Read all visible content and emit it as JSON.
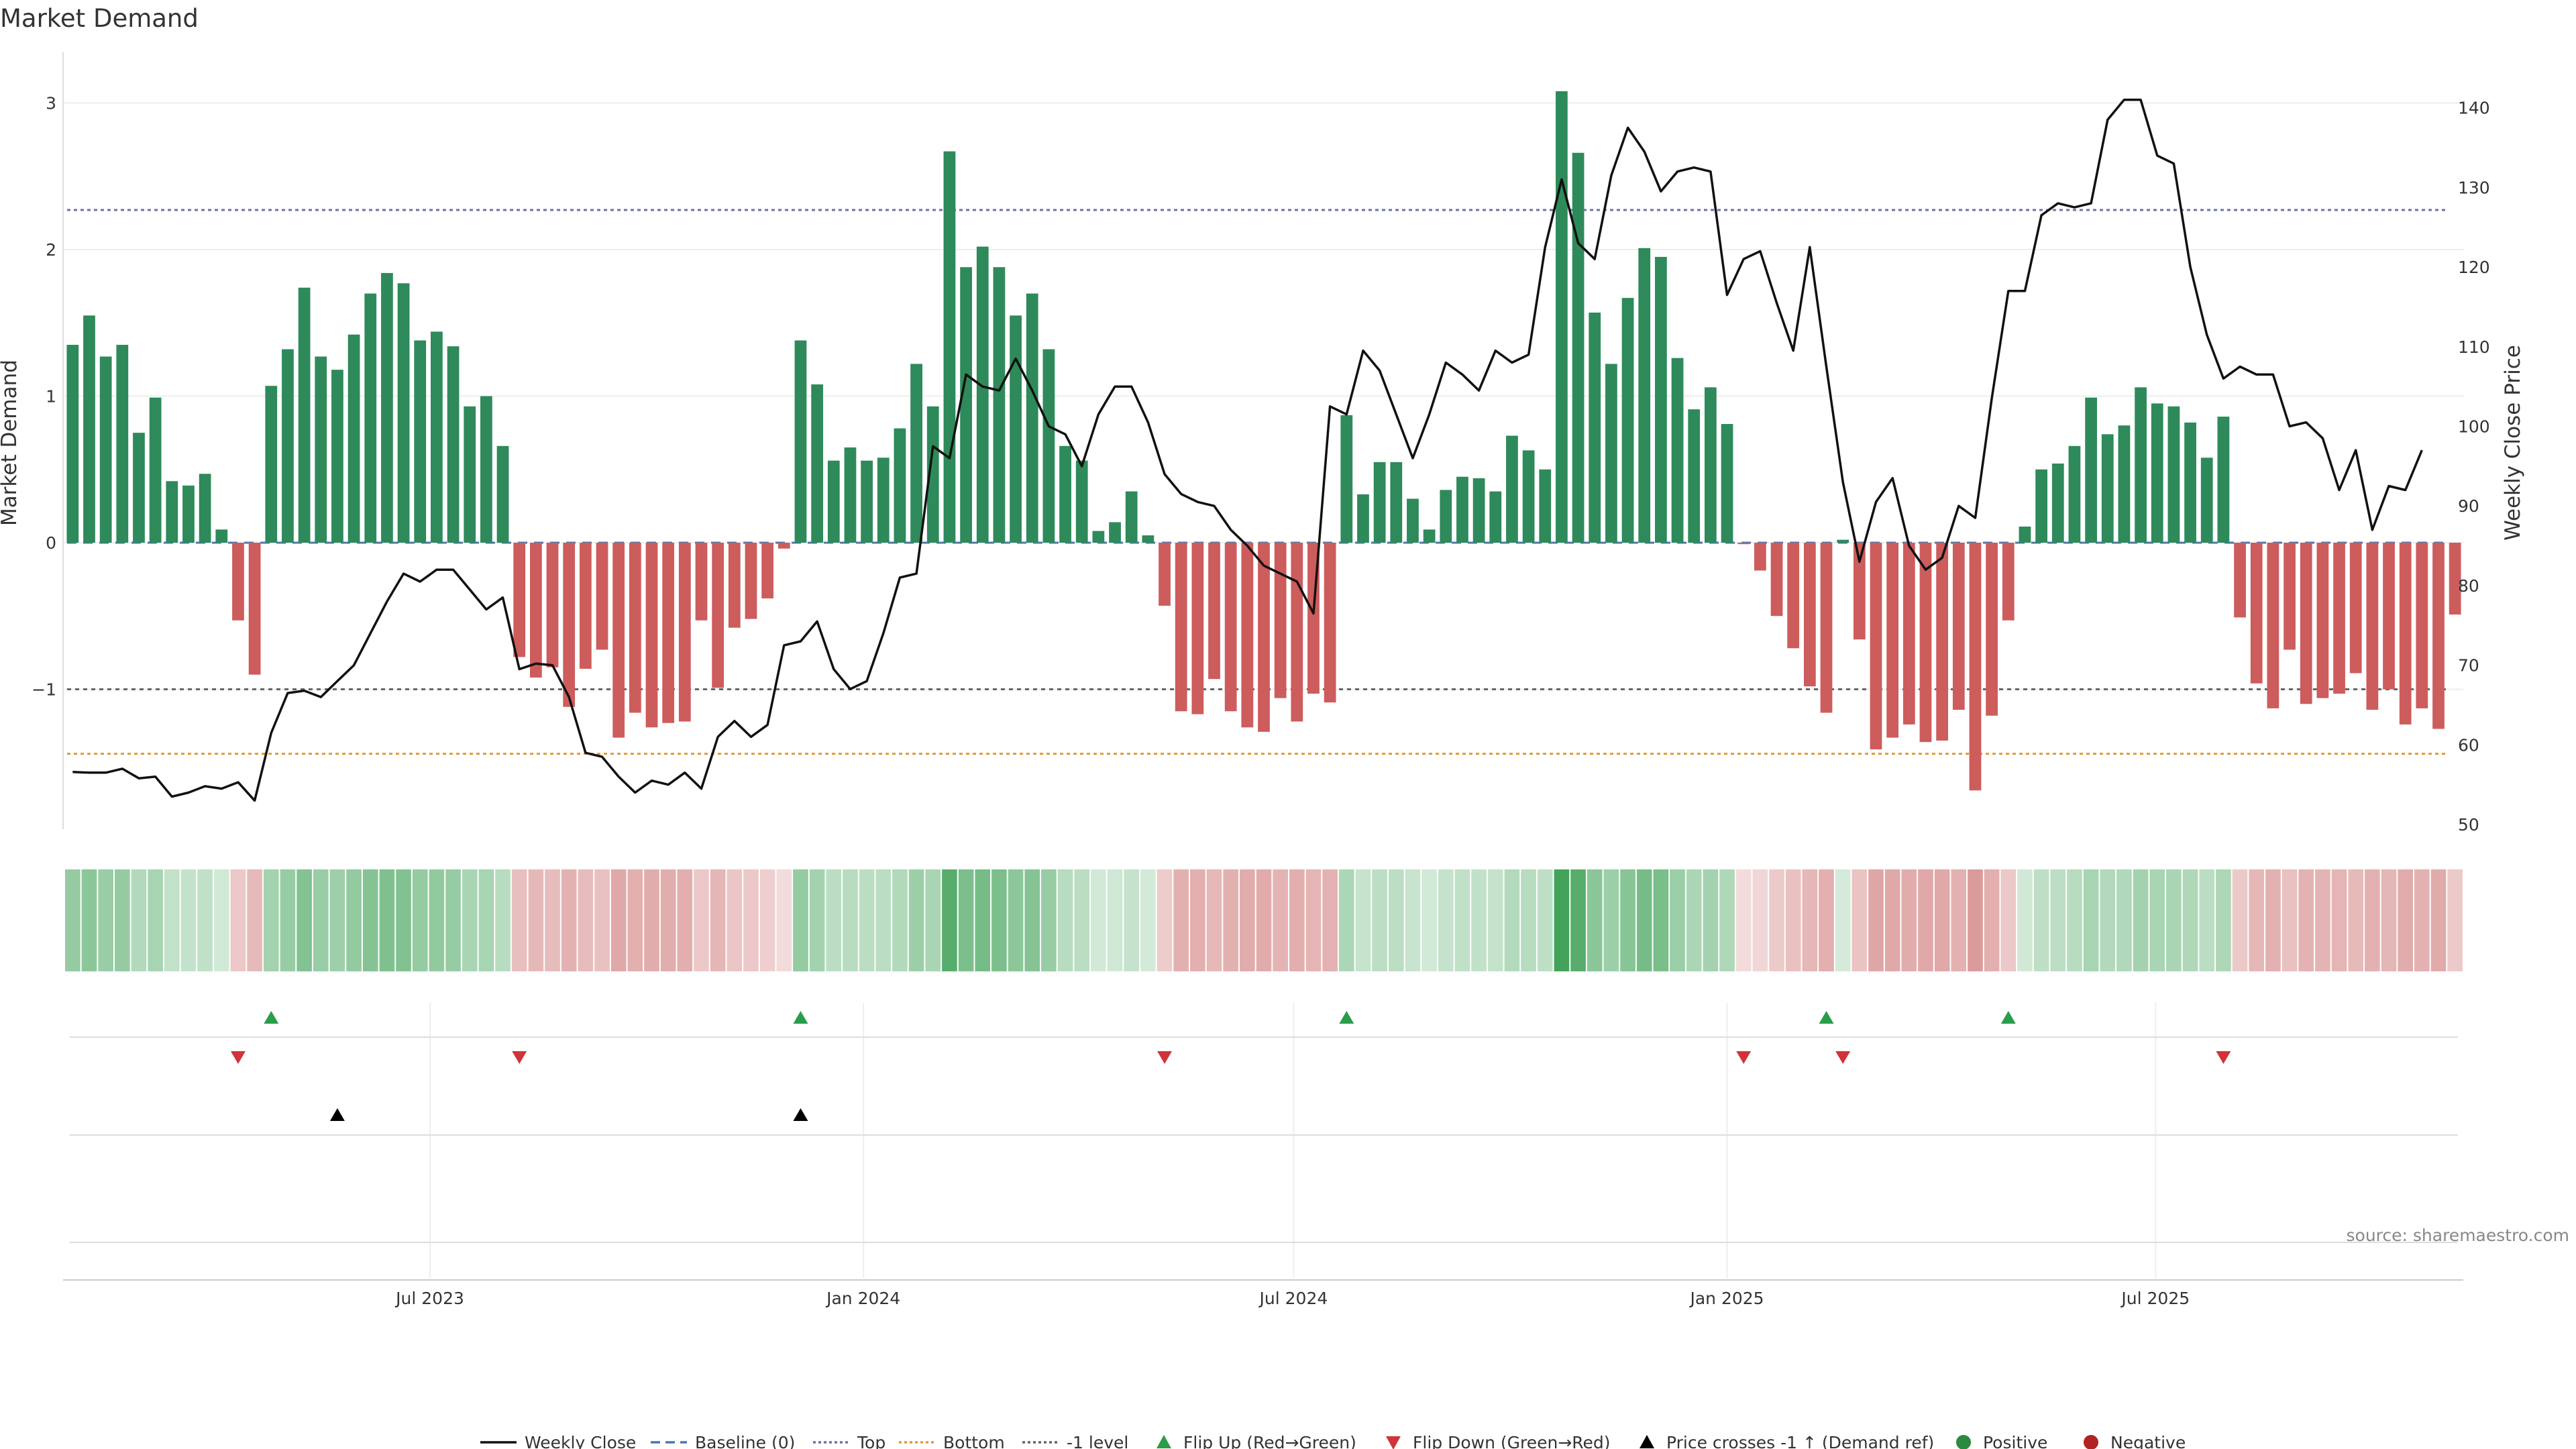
{
  "chart_data": {
    "type": "bar",
    "title": "Market Demand",
    "ylabel": "Market Demand",
    "y2label": "Weekly Close Price",
    "ylim": [
      -1.9,
      3.35
    ],
    "y2lim": [
      49,
      143
    ],
    "yticks": [
      3,
      2,
      1,
      0,
      -1
    ],
    "ytick_labels": [
      "3",
      "2",
      "1",
      "0",
      "−1"
    ],
    "y2ticks": [
      140,
      130,
      120,
      110,
      100,
      90,
      80,
      70,
      60,
      50
    ],
    "reference_lines": {
      "baseline": 0,
      "top": 2.27,
      "bottom": -1.44,
      "minus_one": -1
    },
    "x_tick_labels": [
      {
        "label": "Jul 2023",
        "week": 21.6
      },
      {
        "label": "Jan 2024",
        "week": 47.8
      },
      {
        "label": "Jul 2024",
        "week": 73.8
      },
      {
        "label": "Jan 2025",
        "week": 100.0
      },
      {
        "label": "Jul 2025",
        "week": 125.9
      }
    ],
    "demand": [
      1.35,
      1.55,
      1.27,
      1.35,
      0.75,
      0.99,
      0.42,
      0.39,
      0.47,
      0.09,
      -0.53,
      -0.9,
      1.07,
      1.32,
      1.74,
      1.27,
      1.18,
      1.42,
      1.7,
      1.84,
      1.77,
      1.38,
      1.44,
      1.34,
      0.93,
      1.0,
      0.66,
      -0.78,
      -0.92,
      -0.85,
      -1.12,
      -0.86,
      -0.73,
      -1.33,
      -1.16,
      -1.26,
      -1.23,
      -1.22,
      -0.53,
      -0.99,
      -0.58,
      -0.52,
      -0.38,
      -0.04,
      1.38,
      1.08,
      0.56,
      0.65,
      0.56,
      0.58,
      0.78,
      1.22,
      0.93,
      2.67,
      1.88,
      2.02,
      1.88,
      1.55,
      1.7,
      1.32,
      0.66,
      0.56,
      0.08,
      0.14,
      0.35,
      0.05,
      -0.43,
      -1.15,
      -1.17,
      -0.93,
      -1.15,
      -1.26,
      -1.29,
      -1.06,
      -1.22,
      -1.03,
      -1.09,
      0.87,
      0.33,
      0.55,
      0.55,
      0.3,
      0.09,
      0.36,
      0.45,
      0.44,
      0.35,
      0.73,
      0.63,
      0.5,
      3.08,
      2.66,
      1.57,
      1.22,
      1.67,
      2.01,
      1.95,
      1.26,
      0.91,
      1.06,
      0.81,
      -0.01,
      -0.19,
      -0.5,
      -0.72,
      -0.98,
      -1.16,
      0.02,
      -0.66,
      -1.41,
      -1.33,
      -1.24,
      -1.36,
      -1.35,
      -1.14,
      -1.69,
      -1.18,
      -0.53,
      0.11,
      0.5,
      0.54,
      0.66,
      0.99,
      0.74,
      0.8,
      1.06,
      0.95,
      0.93,
      0.82,
      0.58,
      0.86,
      -0.51,
      -0.96,
      -1.13,
      -0.73,
      -1.1,
      -1.06,
      -1.03,
      -0.89,
      -1.14,
      -1.0,
      -1.24,
      -1.13,
      -1.27,
      -0.49
    ],
    "weekly_close": [
      56.6,
      56.5,
      56.5,
      57.0,
      55.8,
      56.0,
      53.5,
      54.0,
      54.8,
      54.5,
      55.3,
      53.0,
      61.5,
      66.5,
      66.8,
      66.0,
      68.0,
      70.0,
      74.0,
      78.0,
      81.5,
      80.5,
      82.0,
      82.0,
      79.5,
      77.0,
      78.5,
      69.5,
      70.2,
      70.0,
      66.0,
      59.0,
      58.5,
      56.0,
      54.0,
      55.5,
      55.0,
      56.5,
      54.5,
      61.0,
      63.0,
      61.0,
      62.5,
      72.5,
      73.0,
      75.5,
      69.5,
      67.0,
      68.0,
      74.0,
      81.0,
      81.5,
      97.5,
      96.0,
      106.5,
      105.0,
      104.5,
      108.5,
      104.5,
      100.0,
      99.0,
      95.0,
      101.5,
      105.0,
      105.0,
      100.5,
      94.0,
      91.5,
      90.5,
      90.0,
      87.0,
      85.0,
      82.5,
      81.5,
      80.5,
      76.5,
      102.5,
      101.5,
      109.5,
      107.0,
      101.5,
      96.0,
      101.5,
      108.0,
      106.5,
      104.5,
      109.5,
      108.0,
      109.0,
      122.5,
      131.0,
      123.0,
      121.0,
      131.5,
      137.5,
      134.5,
      129.5,
      132.0,
      132.5,
      132.0,
      116.5,
      121.0,
      122.0,
      115.5,
      109.5,
      122.5,
      107.5,
      93.0,
      83.0,
      90.5,
      93.5,
      85.0,
      82.0,
      83.5,
      90.0,
      88.5,
      103.5,
      117.0,
      117.0,
      126.5,
      128.0,
      127.5,
      128.0,
      138.5,
      141.0,
      141.0,
      134.0,
      133.0,
      120.0,
      111.5,
      106.0,
      107.5,
      106.5,
      106.5,
      100.0,
      100.5,
      98.5,
      92.0,
      97.0,
      87.0,
      92.5,
      92.0,
      97.0
    ],
    "flip_up_weeks": [
      12,
      44,
      77,
      106,
      117
    ],
    "flip_down_weeks": [
      10,
      27,
      66,
      101,
      107,
      130
    ],
    "price_cross_weeks": [
      16,
      44
    ],
    "source": "source: sharemaestro.com",
    "legend": [
      {
        "label": "Weekly Close",
        "symbol": "line-solid",
        "color": "#111111"
      },
      {
        "label": "Baseline (0)",
        "symbol": "line-dashed",
        "color": "#4a78b0"
      },
      {
        "label": "Top",
        "symbol": "line-dotted",
        "color": "#6b72a8"
      },
      {
        "label": "Bottom",
        "symbol": "line-dotted",
        "color": "#e39a34"
      },
      {
        "label": "-1 level",
        "symbol": "line-dotted",
        "color": "#666666"
      },
      {
        "label": "Flip Up (Red→Green)",
        "symbol": "triangle-up",
        "color": "#2a9d4a"
      },
      {
        "label": "Flip Down (Green→Red)",
        "symbol": "triangle-down",
        "color": "#d1333a"
      },
      {
        "label": "Price crosses -1 ↑ (Demand ref)",
        "symbol": "triangle-up",
        "color": "#000000"
      },
      {
        "label": "Positive",
        "symbol": "circle",
        "color": "#2a8a3e"
      },
      {
        "label": "Negative",
        "symbol": "circle",
        "color": "#b22222"
      }
    ],
    "colors": {
      "positive_bar": "#2e8a5a",
      "negative_bar": "#cd5c5c",
      "heat_positive": "#43a35a",
      "heat_negative": "#c86464",
      "grid": "#eeeeee"
    }
  }
}
